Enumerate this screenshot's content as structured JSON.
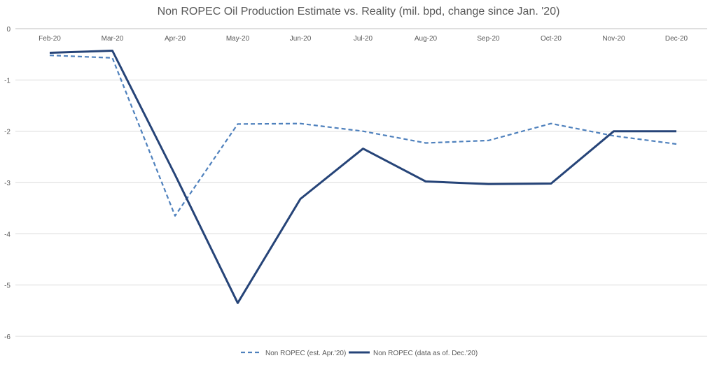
{
  "chart_data": {
    "type": "line",
    "title": "Non ROPEC Oil Production Estimate vs. Reality (mil. bpd, change since Jan. '20)",
    "xlabel": "",
    "ylabel": "",
    "categories": [
      "Feb-20",
      "Mar-20",
      "Apr-20",
      "May-20",
      "Jun-20",
      "Jul-20",
      "Aug-20",
      "Sep-20",
      "Oct-20",
      "Nov-20",
      "Dec-20"
    ],
    "ylim": [
      -6,
      0
    ],
    "yticks": [
      0,
      -1,
      -2,
      -3,
      -4,
      -5,
      -6
    ],
    "grid": true,
    "legend_position": "bottom",
    "series": [
      {
        "name": "Non ROPEC (est. Apr.'20)",
        "color": "#4f81bd",
        "style": "dashed",
        "values": [
          -0.52,
          -0.57,
          -3.65,
          -1.86,
          -1.85,
          -2.0,
          -2.23,
          -2.18,
          -1.85,
          -2.09,
          -2.25
        ]
      },
      {
        "name": "Non ROPEC (data as of. Dec.'20)",
        "color": "#264478",
        "style": "solid",
        "values": [
          -0.47,
          -0.43,
          -2.85,
          -5.35,
          -3.32,
          -2.34,
          -2.98,
          -3.03,
          -3.02,
          -2.0,
          -2.0
        ]
      }
    ]
  }
}
